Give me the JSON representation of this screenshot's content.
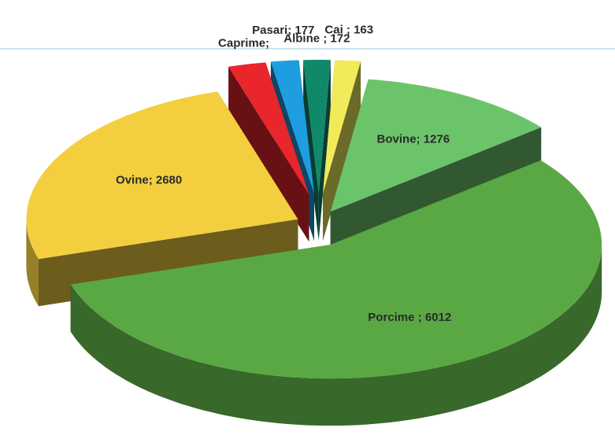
{
  "chart_data": {
    "type": "pie",
    "values": [
      1276,
      6012,
      2680,
      240,
      177,
      172,
      163
    ],
    "value_labels": [
      "Bovine; 1276",
      "Porcime ; 6012",
      "Ovine; 2680",
      "Caprime;",
      "Pasari; 177",
      "Albine ; 172",
      "Cai ; 163"
    ],
    "colors": [
      "#6cc46a",
      "#5aa844",
      "#f3cf3f",
      "#e8262c",
      "#1e9de0",
      "#10896a",
      "#f1eb5a"
    ]
  }
}
